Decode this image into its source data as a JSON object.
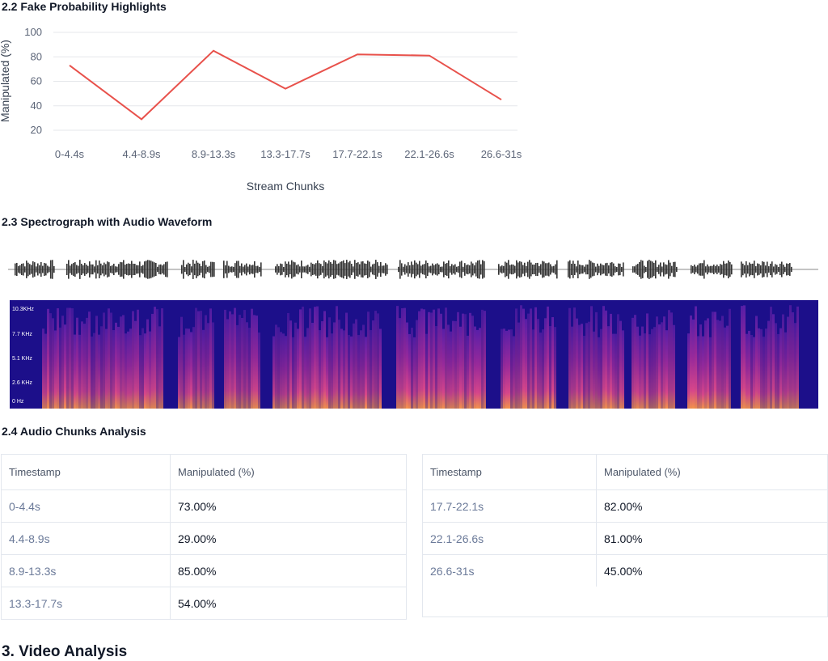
{
  "sections": {
    "fake_prob_title": "2.2 Fake Probability Highlights",
    "spectro_title": "2.3 Spectrograph with Audio Waveform",
    "chunks_title": "2.4 Audio Chunks Analysis",
    "video_title": "3. Video Analysis"
  },
  "chart_data": {
    "type": "line",
    "categories": [
      "0-4.4s",
      "4.4-8.9s",
      "8.9-13.3s",
      "13.3-17.7s",
      "17.7-22.1s",
      "22.1-26.6s",
      "26.6-31s"
    ],
    "series": [
      {
        "values": [
          73,
          29,
          85,
          54,
          82,
          81,
          45
        ]
      }
    ],
    "xlabel": "Stream Chunks",
    "ylabel": "Manipulated (%)",
    "yticks": [
      20,
      40,
      60,
      80,
      100
    ],
    "ylim": [
      20,
      100
    ],
    "grid": true,
    "line_color": "#e8514b"
  },
  "spectrogram": {
    "freq_labels": [
      "10.3KHz",
      "7.7 KHz",
      "5.1 KHz",
      "2.6 KHz",
      "0 Hz"
    ]
  },
  "table": {
    "headers": [
      "Timestamp",
      "Manipulated (%)"
    ],
    "left_rows": [
      {
        "timestamp": "0-4.4s",
        "value": "73.00%"
      },
      {
        "timestamp": "4.4-8.9s",
        "value": "29.00%"
      },
      {
        "timestamp": "8.9-13.3s",
        "value": "85.00%"
      },
      {
        "timestamp": "13.3-17.7s",
        "value": "54.00%"
      }
    ],
    "right_rows": [
      {
        "timestamp": "17.7-22.1s",
        "value": "82.00%"
      },
      {
        "timestamp": "22.1-26.6s",
        "value": "81.00%"
      },
      {
        "timestamp": "26.6-31s",
        "value": "45.00%"
      }
    ]
  }
}
